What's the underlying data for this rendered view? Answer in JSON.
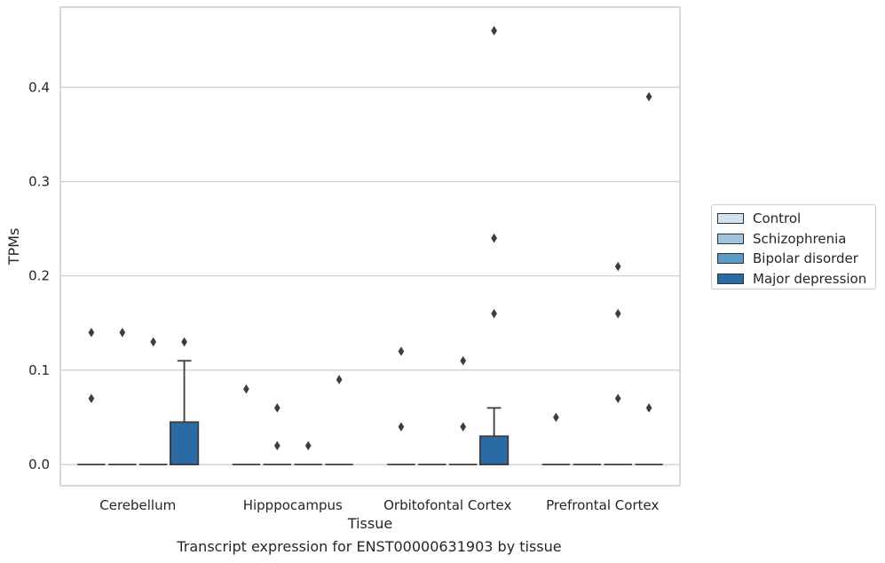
{
  "chart_data": {
    "type": "box",
    "xlabel": "Tissue",
    "ylabel": "TPMs",
    "ylim": [
      -0.0225,
      0.485
    ],
    "yticks": [
      "0.0",
      "0.1",
      "0.2",
      "0.3",
      "0.4"
    ],
    "grid": true,
    "legend_position": "right",
    "categories": [
      "Cerebellum",
      "Hipppocampus",
      "Orbitofontal Cortex",
      "Prefrontal Cortex"
    ],
    "series": [
      {
        "name": "Control",
        "color": "#d2e2f0",
        "boxes": [
          {
            "q1": 0,
            "median": 0,
            "q3": 0,
            "whisker_low": 0,
            "whisker_high": 0,
            "outliers": [
              0.14,
              0.07
            ]
          },
          {
            "q1": 0,
            "median": 0,
            "q3": 0,
            "whisker_low": 0,
            "whisker_high": 0,
            "outliers": [
              0.08
            ]
          },
          {
            "q1": 0,
            "median": 0,
            "q3": 0,
            "whisker_low": 0,
            "whisker_high": 0,
            "outliers": [
              0.12,
              0.04
            ]
          },
          {
            "q1": 0,
            "median": 0,
            "q3": 0,
            "whisker_low": 0,
            "whisker_high": 0,
            "outliers": [
              0.05
            ]
          }
        ]
      },
      {
        "name": "Schizophrenia",
        "color": "#9dc3dd",
        "boxes": [
          {
            "q1": 0,
            "median": 0,
            "q3": 0,
            "whisker_low": 0,
            "whisker_high": 0,
            "outliers": [
              0.14
            ]
          },
          {
            "q1": 0,
            "median": 0,
            "q3": 0,
            "whisker_low": 0,
            "whisker_high": 0,
            "outliers": [
              0.06,
              0.02
            ]
          },
          {
            "q1": 0,
            "median": 0,
            "q3": 0,
            "whisker_low": 0,
            "whisker_high": 0,
            "outliers": []
          },
          {
            "q1": 0,
            "median": 0,
            "q3": 0,
            "whisker_low": 0,
            "whisker_high": 0,
            "outliers": []
          }
        ]
      },
      {
        "name": "Bipolar disorder",
        "color": "#5b9bc8",
        "boxes": [
          {
            "q1": 0,
            "median": 0,
            "q3": 0,
            "whisker_low": 0,
            "whisker_high": 0,
            "outliers": [
              0.13
            ]
          },
          {
            "q1": 0,
            "median": 0,
            "q3": 0,
            "whisker_low": 0,
            "whisker_high": 0,
            "outliers": [
              0.02
            ]
          },
          {
            "q1": 0,
            "median": 0,
            "q3": 0,
            "whisker_low": 0,
            "whisker_high": 0,
            "outliers": [
              0.11,
              0.04
            ]
          },
          {
            "q1": 0,
            "median": 0,
            "q3": 0,
            "whisker_low": 0,
            "whisker_high": 0,
            "outliers": [
              0.21,
              0.16,
              0.07
            ]
          }
        ]
      },
      {
        "name": "Major depression",
        "color": "#2a6aa5",
        "boxes": [
          {
            "q1": 0,
            "median": 0,
            "q3": 0.045,
            "whisker_low": 0,
            "whisker_high": 0.11,
            "outliers": [
              0.13
            ]
          },
          {
            "q1": 0,
            "median": 0,
            "q3": 0,
            "whisker_low": 0,
            "whisker_high": 0,
            "outliers": [
              0.09
            ]
          },
          {
            "q1": 0,
            "median": 0,
            "q3": 0.03,
            "whisker_low": 0,
            "whisker_high": 0.06,
            "outliers": [
              0.46,
              0.24,
              0.16
            ]
          },
          {
            "q1": 0,
            "median": 0,
            "q3": 0,
            "whisker_low": 0,
            "whisker_high": 0,
            "outliers": [
              0.39,
              0.06
            ]
          }
        ]
      }
    ]
  },
  "caption": "Transcript expression for ENST00000631903 by tissue"
}
